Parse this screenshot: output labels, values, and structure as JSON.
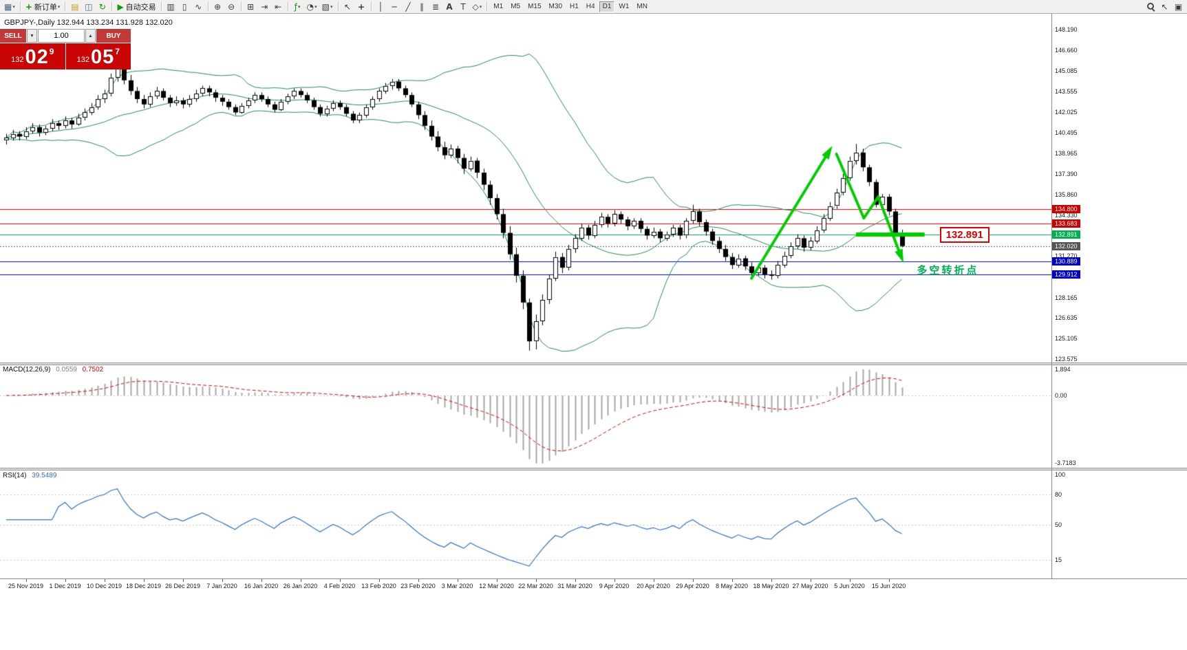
{
  "toolbar": {
    "dd_glyph": "▾",
    "items": [
      {
        "name": "chart-window-icon",
        "glyph": "▦",
        "color": "#4a6784",
        "dd": true
      },
      {
        "sep": true
      },
      {
        "name": "new-order-button",
        "glyph": "+",
        "color": "#0b9a0b",
        "bold": true,
        "label": "新订单",
        "dd": true
      },
      {
        "sep": true
      },
      {
        "name": "chart-profile-icon",
        "glyph": "▤",
        "color": "#c79a2a"
      },
      {
        "name": "market-watch-icon",
        "glyph": "◫",
        "color": "#46668c"
      },
      {
        "name": "refresh-icon",
        "glyph": "↻",
        "color": "#0b9a0b"
      },
      {
        "sep": true
      },
      {
        "name": "auto-trading-button",
        "glyph": "▶",
        "color": "#0b9a0b",
        "label": "自动交易"
      },
      {
        "sep": true
      },
      {
        "name": "bar-chart-icon",
        "glyph": "▥"
      },
      {
        "name": "candlestick-icon",
        "glyph": "▯"
      },
      {
        "name": "line-chart-icon",
        "glyph": "∿"
      },
      {
        "sep": true
      },
      {
        "name": "zoom-in-icon",
        "glyph": "⊕"
      },
      {
        "name": "zoom-out-icon",
        "glyph": "⊖"
      },
      {
        "sep": true
      },
      {
        "name": "tile-windows-icon",
        "glyph": "⊞"
      },
      {
        "name": "auto-scroll-icon",
        "glyph": "⇥"
      },
      {
        "name": "chart-shift-icon",
        "glyph": "⇤"
      },
      {
        "sep": true
      },
      {
        "name": "indicators-icon",
        "glyph": "ƒ",
        "color": "#0b9a0b",
        "dd": true
      },
      {
        "name": "periods-icon",
        "glyph": "◔",
        "dd": true
      },
      {
        "name": "templates-icon",
        "glyph": "▧",
        "dd": true
      },
      {
        "sep": true
      },
      {
        "name": "cursor-icon",
        "glyph": "↖"
      },
      {
        "name": "crosshair-icon",
        "glyph": "+",
        "bold": true
      },
      {
        "sep": true
      },
      {
        "name": "vertical-line-icon",
        "glyph": "│"
      },
      {
        "name": "horizontal-line-icon",
        "glyph": "─"
      },
      {
        "name": "trendline-icon",
        "glyph": "╱"
      },
      {
        "name": "channel-icon",
        "glyph": "∥"
      },
      {
        "name": "fibonacci-icon",
        "glyph": "≣"
      },
      {
        "name": "text-icon",
        "glyph": "A",
        "bold": true
      },
      {
        "name": "label-icon",
        "glyph": "T"
      },
      {
        "name": "shapes-icon",
        "glyph": "◇",
        "dd": true
      },
      {
        "sep": true
      }
    ],
    "timeframes": [
      {
        "label": "M1"
      },
      {
        "label": "M5"
      },
      {
        "label": "M15"
      },
      {
        "label": "M30"
      },
      {
        "label": "H1"
      },
      {
        "label": "H4"
      },
      {
        "label": "D1",
        "active": true
      },
      {
        "label": "W1"
      },
      {
        "label": "MN"
      }
    ],
    "right_items": [
      {
        "name": "search-icon",
        "css": "mag"
      },
      {
        "name": "pointer-icon",
        "glyph": "↖"
      },
      {
        "name": "popup-prices-icon",
        "glyph": "▣"
      }
    ]
  },
  "chart": {
    "title": "GBPJPY-,Daily 132.944 133.234 131.928 132.020",
    "callout_text": "132.891",
    "turning_point_text": "多空转折点",
    "price_axis": [
      "148.190",
      "146.660",
      "145.085",
      "143.555",
      "142.025",
      "140.495",
      "138.965",
      "137.390",
      "135.860",
      "134.330",
      "132.800",
      "131.270",
      "129.740",
      "128.165",
      "126.635",
      "125.105",
      "123.575"
    ],
    "time_axis": [
      "25 Nov 2019",
      "1 Dec 2019",
      "10 Dec 2019",
      "18 Dec 2019",
      "26 Dec 2019",
      "7 Jan 2020",
      "16 Jan 2020",
      "26 Jan 2020",
      "4 Feb 2020",
      "13 Feb 2020",
      "23 Feb 2020",
      "3 Mar 2020",
      "12 Mar 2020",
      "22 Mar 2020",
      "31 Mar 2020",
      "9 Apr 2020",
      "20 Apr 2020",
      "29 Apr 2020",
      "8 May 2020",
      "18 May 2020",
      "27 May 2020",
      "5 Jun 2020",
      "15 Jun 2020"
    ]
  },
  "trade": {
    "sell_label": "SELL",
    "buy_label": "BUY",
    "volume": "1.00",
    "spin_down": "▼",
    "spin_up": "▲",
    "sell_price": {
      "prefix": "132",
      "big": "02",
      "sup": "9"
    },
    "buy_price": {
      "prefix": "132",
      "big": "05",
      "sup": "7"
    }
  },
  "indicators": {
    "macd": {
      "name": "MACD(12,26,9)",
      "value": "0.0559",
      "signal": "0.7502",
      "axis": [
        "1.894",
        "0.00",
        "-3.7183"
      ]
    },
    "rsi": {
      "name": "RSI(14)",
      "value": "39.5489",
      "axis": [
        "100",
        "80",
        "50",
        "15"
      ]
    }
  },
  "chart_data": {
    "type": "candlestick",
    "symbol": "GBPJPY-",
    "timeframe": "Daily",
    "layout": {
      "price_max": 148.19,
      "price_min": 123.575,
      "grid": false,
      "legend_position": "none"
    },
    "bollinger": {
      "period": 20,
      "deviation": 2,
      "color": "#1F8A55"
    },
    "macd": {
      "fast": 12,
      "slow": 26,
      "signal": 9
    },
    "rsi": {
      "period": 14,
      "levels": [
        80,
        50,
        15
      ]
    },
    "hlines": [
      {
        "price": 134.8,
        "color": "#E00000",
        "tag": true,
        "tag_bg": "#D00000"
      },
      {
        "price": 133.683,
        "color": "#E00000",
        "tag": true,
        "tag_bg": "#D00000"
      },
      {
        "price": 132.891,
        "color": "#00A050",
        "tag": true,
        "tag_bg": "#00B050"
      },
      {
        "price": 132.02,
        "color": "#606060",
        "dash": true,
        "tag": true,
        "tag_bg": "#555555"
      },
      {
        "price": 130.889,
        "color": "#0000CC",
        "tag": true,
        "tag_bg": "#0000CC"
      },
      {
        "price": 129.912,
        "color": "#0000CC",
        "tag": true,
        "tag_bg": "#0000CC"
      }
    ],
    "annotations": {
      "color": "#00CC00",
      "up_arrow": {
        "from": [
          114,
          129.6
        ],
        "to": [
          126,
          139.2
        ]
      },
      "zigzag": [
        [
          127,
          138.9
        ],
        [
          131.2,
          134.1
        ],
        [
          133.4,
          135.7
        ],
        [
          137,
          131.1
        ]
      ],
      "support": {
        "price": 132.891,
        "from_index": 130,
        "to_index": 140.5
      },
      "callout": {
        "index": 142.8,
        "price": 132.891
      },
      "turning_text": {
        "index": 139.3,
        "price": 130.75
      }
    },
    "dates_label_start_index": 3,
    "dates_label_step": 6,
    "ohlc": [
      [
        139.9,
        140.4,
        139.6,
        140.1
      ],
      [
        140.1,
        140.7,
        139.9,
        140.4
      ],
      [
        140.4,
        140.6,
        139.9,
        140.2
      ],
      [
        140.2,
        140.9,
        140.0,
        140.6
      ],
      [
        140.6,
        141.2,
        140.4,
        140.9
      ],
      [
        140.9,
        141.1,
        140.2,
        140.5
      ],
      [
        140.5,
        141.0,
        140.3,
        140.8
      ],
      [
        140.8,
        141.5,
        140.6,
        141.2
      ],
      [
        141.2,
        141.4,
        140.7,
        141.0
      ],
      [
        141.0,
        141.7,
        140.8,
        141.4
      ],
      [
        141.4,
        141.6,
        140.8,
        141.1
      ],
      [
        141.1,
        141.9,
        141.0,
        141.6
      ],
      [
        141.6,
        142.3,
        141.4,
        142.0
      ],
      [
        142.0,
        142.7,
        141.8,
        142.4
      ],
      [
        142.4,
        143.3,
        142.2,
        143.0
      ],
      [
        143.0,
        143.7,
        142.7,
        143.4
      ],
      [
        143.4,
        144.9,
        143.2,
        144.6
      ],
      [
        144.6,
        145.9,
        144.3,
        145.3
      ],
      [
        145.3,
        145.6,
        144.1,
        144.4
      ],
      [
        144.4,
        144.8,
        143.3,
        143.6
      ],
      [
        143.6,
        143.9,
        142.7,
        143.0
      ],
      [
        143.0,
        143.3,
        142.3,
        142.6
      ],
      [
        142.6,
        143.5,
        142.4,
        143.2
      ],
      [
        143.2,
        143.9,
        143.0,
        143.6
      ],
      [
        143.6,
        143.8,
        142.9,
        143.1
      ],
      [
        143.1,
        143.3,
        142.4,
        142.7
      ],
      [
        142.7,
        143.2,
        142.5,
        142.9
      ],
      [
        142.9,
        143.1,
        142.3,
        142.6
      ],
      [
        142.6,
        143.3,
        142.4,
        143.0
      ],
      [
        143.0,
        143.7,
        142.8,
        143.4
      ],
      [
        143.4,
        144.0,
        143.2,
        143.8
      ],
      [
        143.8,
        144.0,
        143.2,
        143.5
      ],
      [
        143.5,
        143.7,
        142.8,
        143.1
      ],
      [
        143.1,
        143.3,
        142.5,
        142.8
      ],
      [
        142.8,
        143.0,
        142.2,
        142.4
      ],
      [
        142.4,
        142.6,
        141.8,
        142.0
      ],
      [
        142.0,
        142.7,
        141.9,
        142.5
      ],
      [
        142.5,
        143.1,
        142.3,
        142.9
      ],
      [
        142.9,
        143.5,
        142.7,
        143.3
      ],
      [
        143.3,
        143.5,
        142.8,
        143.0
      ],
      [
        143.0,
        143.2,
        142.4,
        142.6
      ],
      [
        142.6,
        142.8,
        142.0,
        142.2
      ],
      [
        142.2,
        143.0,
        142.1,
        142.8
      ],
      [
        142.8,
        143.4,
        142.6,
        143.2
      ],
      [
        143.2,
        143.8,
        143.0,
        143.6
      ],
      [
        143.6,
        143.8,
        143.1,
        143.3
      ],
      [
        143.3,
        143.5,
        142.7,
        142.9
      ],
      [
        142.9,
        143.1,
        142.2,
        142.4
      ],
      [
        142.4,
        142.6,
        141.7,
        141.9
      ],
      [
        141.9,
        142.5,
        141.7,
        142.3
      ],
      [
        142.3,
        142.9,
        142.1,
        142.7
      ],
      [
        142.7,
        142.9,
        142.2,
        142.4
      ],
      [
        142.4,
        142.6,
        141.7,
        141.9
      ],
      [
        141.9,
        142.1,
        141.2,
        141.4
      ],
      [
        141.4,
        142.0,
        141.2,
        141.8
      ],
      [
        141.8,
        142.6,
        141.6,
        142.4
      ],
      [
        142.4,
        143.2,
        142.2,
        143.0
      ],
      [
        143.0,
        143.8,
        142.8,
        143.6
      ],
      [
        143.6,
        144.2,
        143.4,
        144.0
      ],
      [
        144.0,
        144.5,
        143.7,
        144.3
      ],
      [
        144.3,
        144.5,
        143.6,
        143.8
      ],
      [
        143.8,
        144.0,
        143.1,
        143.3
      ],
      [
        143.3,
        143.5,
        142.4,
        142.6
      ],
      [
        142.6,
        142.8,
        141.5,
        141.8
      ],
      [
        141.8,
        142.1,
        140.7,
        141.0
      ],
      [
        141.0,
        141.4,
        139.9,
        140.2
      ],
      [
        140.2,
        140.6,
        139.1,
        139.4
      ],
      [
        139.4,
        139.8,
        138.5,
        138.8
      ],
      [
        138.8,
        139.6,
        138.6,
        139.3
      ],
      [
        139.3,
        139.5,
        138.2,
        138.6
      ],
      [
        138.6,
        138.9,
        137.4,
        137.8
      ],
      [
        137.8,
        138.7,
        137.6,
        138.4
      ],
      [
        138.4,
        138.6,
        137.1,
        137.5
      ],
      [
        137.5,
        137.8,
        136.2,
        136.6
      ],
      [
        136.6,
        136.9,
        135.1,
        135.6
      ],
      [
        135.6,
        135.9,
        134.0,
        134.4
      ],
      [
        134.4,
        134.8,
        132.6,
        133.0
      ],
      [
        133.0,
        133.5,
        131.0,
        131.4
      ],
      [
        131.4,
        131.9,
        129.3,
        129.8
      ],
      [
        129.8,
        130.2,
        127.3,
        127.8
      ],
      [
        127.8,
        128.1,
        124.2,
        124.9
      ],
      [
        124.9,
        126.9,
        124.3,
        126.4
      ],
      [
        126.4,
        128.4,
        126.1,
        128.0
      ],
      [
        128.0,
        129.9,
        127.7,
        129.6
      ],
      [
        129.6,
        131.6,
        129.4,
        131.2
      ],
      [
        131.2,
        131.5,
        130.0,
        130.4
      ],
      [
        130.4,
        132.1,
        130.2,
        131.8
      ],
      [
        131.8,
        132.9,
        131.5,
        132.6
      ],
      [
        132.6,
        133.7,
        132.4,
        133.4
      ],
      [
        133.4,
        133.6,
        132.5,
        132.8
      ],
      [
        132.8,
        133.9,
        132.6,
        133.6
      ],
      [
        133.6,
        134.5,
        133.4,
        134.2
      ],
      [
        134.2,
        134.4,
        133.4,
        133.7
      ],
      [
        133.7,
        134.7,
        133.5,
        134.4
      ],
      [
        134.4,
        134.6,
        133.7,
        134.0
      ],
      [
        134.0,
        134.2,
        133.2,
        133.5
      ],
      [
        133.5,
        134.1,
        133.3,
        133.9
      ],
      [
        133.9,
        134.1,
        133.0,
        133.3
      ],
      [
        133.3,
        133.5,
        132.5,
        132.8
      ],
      [
        132.8,
        133.4,
        132.6,
        133.1
      ],
      [
        133.1,
        133.3,
        132.3,
        132.6
      ],
      [
        132.6,
        133.1,
        132.4,
        132.9
      ],
      [
        132.9,
        133.6,
        132.7,
        133.4
      ],
      [
        133.4,
        133.6,
        132.5,
        132.8
      ],
      [
        132.8,
        134.1,
        132.6,
        133.9
      ],
      [
        133.9,
        135.1,
        133.7,
        134.6
      ],
      [
        134.6,
        134.8,
        133.5,
        133.8
      ],
      [
        133.8,
        134.0,
        132.8,
        133.1
      ],
      [
        133.1,
        133.3,
        132.1,
        132.4
      ],
      [
        132.4,
        132.7,
        131.5,
        131.8
      ],
      [
        131.8,
        132.1,
        130.9,
        131.2
      ],
      [
        131.2,
        131.5,
        130.3,
        130.6
      ],
      [
        130.6,
        131.4,
        130.4,
        131.1
      ],
      [
        131.1,
        131.3,
        130.2,
        130.5
      ],
      [
        130.5,
        130.8,
        129.7,
        130.0
      ],
      [
        130.0,
        130.7,
        129.8,
        130.4
      ],
      [
        130.4,
        130.6,
        129.6,
        129.9
      ],
      [
        129.9,
        130.2,
        129.5,
        129.8
      ],
      [
        129.8,
        130.9,
        129.6,
        130.6
      ],
      [
        130.6,
        131.6,
        130.4,
        131.3
      ],
      [
        131.3,
        132.3,
        131.1,
        132.0
      ],
      [
        132.0,
        132.9,
        131.8,
        132.6
      ],
      [
        132.6,
        132.8,
        131.6,
        131.9
      ],
      [
        131.9,
        132.7,
        131.7,
        132.4
      ],
      [
        132.4,
        133.5,
        132.2,
        133.2
      ],
      [
        133.2,
        134.4,
        133.0,
        134.1
      ],
      [
        134.1,
        135.3,
        133.9,
        135.0
      ],
      [
        135.0,
        136.3,
        134.8,
        136.0
      ],
      [
        136.0,
        137.4,
        135.8,
        137.1
      ],
      [
        137.1,
        138.7,
        136.9,
        138.4
      ],
      [
        138.4,
        139.65,
        138.1,
        139.0
      ],
      [
        139.0,
        139.3,
        137.6,
        137.9
      ],
      [
        137.9,
        138.1,
        136.5,
        136.8
      ],
      [
        136.8,
        137.0,
        134.9,
        135.1
      ],
      [
        135.1,
        135.9,
        134.9,
        135.7
      ],
      [
        135.7,
        135.9,
        134.3,
        134.6
      ],
      [
        134.6,
        134.8,
        132.8,
        133.0
      ],
      [
        132.944,
        133.234,
        131.928,
        132.02
      ]
    ]
  }
}
